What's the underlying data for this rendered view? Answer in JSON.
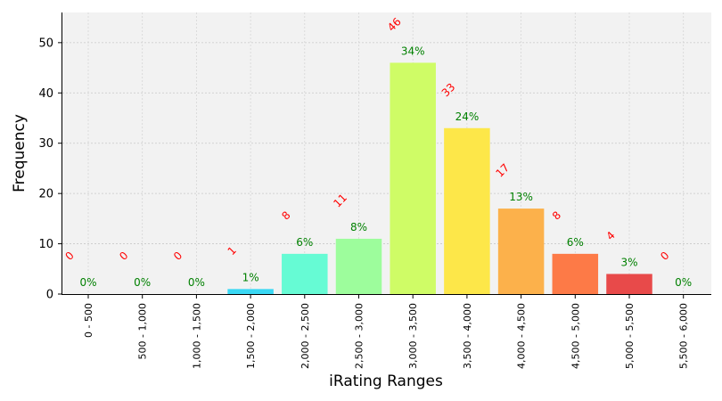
{
  "chart_data": {
    "type": "bar",
    "xlabel": "iRating Ranges",
    "ylabel": "Frequency",
    "ylim": [
      0,
      56
    ],
    "yticks": [
      0,
      10,
      20,
      30,
      40,
      50
    ],
    "grid": true,
    "categories": [
      "0 - 500",
      "500 - 1,000",
      "1,000 - 1,500",
      "1,500 - 2,000",
      "2,000 - 2,500",
      "2,500 - 3,000",
      "3,000 - 3,500",
      "3,500 - 4,000",
      "4,000 - 4,500",
      "4,500 - 5,000",
      "5,000 - 5,500",
      "5,500 - 6,000"
    ],
    "values": [
      0,
      0,
      0,
      1,
      8,
      11,
      46,
      33,
      17,
      8,
      4,
      0
    ],
    "count_labels": [
      "0",
      "0",
      "0",
      "1",
      "8",
      "11",
      "46",
      "33",
      "17",
      "8",
      "4",
      "0"
    ],
    "percent_labels": [
      "0%",
      "0%",
      "0%",
      "1%",
      "6%",
      "8%",
      "34%",
      "24%",
      "13%",
      "6%",
      "3%",
      "0%"
    ],
    "colors": [
      "#3b2fd0",
      "#3060f0",
      "#2a9df4",
      "#3ad8f4",
      "#66fbd4",
      "#9dfd9c",
      "#cffc66",
      "#fde749",
      "#fcb14b",
      "#fd7a47",
      "#e84a4a",
      "#b0102b"
    ]
  }
}
